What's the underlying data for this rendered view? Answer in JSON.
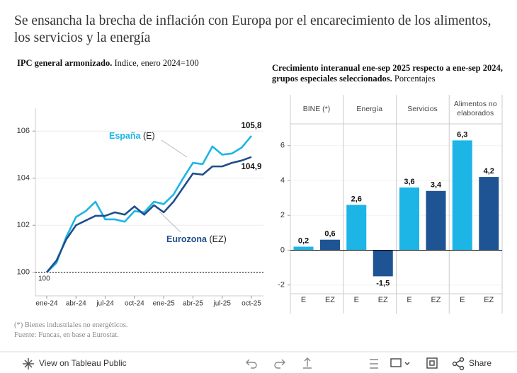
{
  "title": "Se ensancha la brecha de inflación con Europa por el encarecimiento de los alimentos, los servicios y la energía",
  "chart_data": [
    {
      "type": "line",
      "title": "IPC general armonizado.",
      "subtitle": "Indice, enero 2024=100",
      "categories": [
        "ene-24",
        null,
        null,
        "abr-24",
        null,
        null,
        "jul-24",
        null,
        null,
        "oct-24",
        null,
        null,
        "ene-25",
        null,
        null,
        "abr-25",
        null,
        null,
        "jul-25",
        null,
        null,
        "oct-25"
      ],
      "series": [
        {
          "name": "España",
          "abbr": "(E)",
          "color": "#1cb5e6",
          "values": [
            100,
            100.4,
            101.5,
            102.35,
            102.6,
            103.0,
            102.25,
            102.25,
            102.15,
            102.6,
            102.55,
            103.0,
            102.9,
            103.3,
            104.0,
            104.65,
            104.6,
            105.35,
            105.0,
            105.05,
            105.3,
            105.8
          ],
          "value_labels": [
            null,
            null,
            null,
            null,
            null,
            null,
            null,
            null,
            null,
            null,
            null,
            null,
            null,
            null,
            null,
            null,
            null,
            null,
            null,
            null,
            null,
            "105,8"
          ]
        },
        {
          "name": "Eurozona",
          "abbr": "(EZ)",
          "color": "#1f4e8c",
          "values": [
            100,
            100.5,
            101.4,
            102.0,
            102.2,
            102.4,
            102.4,
            102.55,
            102.45,
            102.8,
            102.45,
            102.85,
            102.55,
            103.0,
            103.6,
            104.2,
            104.15,
            104.5,
            104.5,
            104.65,
            104.75,
            104.9
          ],
          "value_labels": [
            null,
            null,
            null,
            null,
            null,
            null,
            null,
            null,
            null,
            null,
            null,
            null,
            null,
            null,
            null,
            null,
            null,
            null,
            null,
            null,
            null,
            "104,9"
          ]
        }
      ],
      "ylim": [
        99,
        107
      ],
      "yticks": [
        100,
        102,
        104,
        106
      ],
      "grid": true,
      "reference_line": {
        "value": 100,
        "label": "100"
      }
    },
    {
      "type": "bar",
      "title": "Crecimiento interanual ene-sep 2025 respecto a ene-sep 2024, grupos especiales seleccionados.",
      "subtitle": "Porcentajes",
      "categories": [
        "BINE (*)",
        "Energía",
        "Servicios",
        "Alimentos no elaborados"
      ],
      "series": [
        {
          "name": "E",
          "color": "#1cb5e6",
          "values": [
            0.2,
            2.6,
            3.6,
            6.3
          ],
          "value_labels": [
            "0,2",
            "2,6",
            "3,6",
            "6,3"
          ]
        },
        {
          "name": "EZ",
          "color": "#1f5494",
          "values": [
            0.6,
            -1.5,
            3.4,
            4.2
          ],
          "value_labels": [
            "0,6",
            "-1,5",
            "3,4",
            "4,2"
          ]
        }
      ],
      "ylim": [
        -2.5,
        7.25
      ],
      "yticks": [
        -2,
        0,
        2,
        4,
        6
      ],
      "grid": true
    }
  ],
  "notes": [
    "(*) Bienes industriales no energéticos.",
    "Fuente: Funcas, en base a Eurostat."
  ],
  "toolbar": {
    "view": "View on Tableau Public",
    "share": "Share"
  }
}
